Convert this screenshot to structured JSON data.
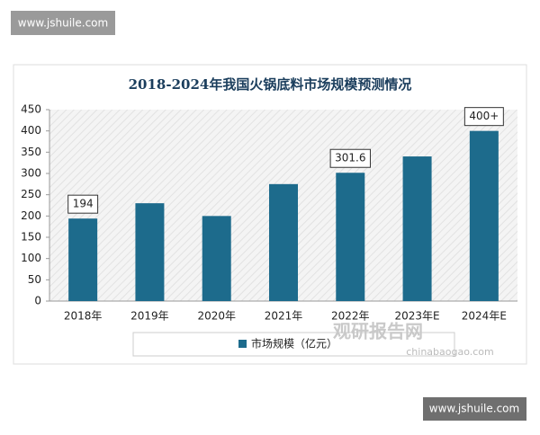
{
  "watermarks": {
    "top": "www.jshuile.com",
    "bottom": "www.jshuile.com",
    "brand": "观研报告网",
    "brand_url": "chinabaogao.com"
  },
  "chart_data": {
    "type": "bar",
    "title": "2018-2024年我国火锅底料市场规模预测情况",
    "categories": [
      "2018年",
      "2019年",
      "2020年",
      "2021年",
      "2022年",
      "2023年E",
      "2024年E"
    ],
    "series": [
      {
        "name": "市场规模（亿元）",
        "color": "#1d6b8c",
        "values": [
          194,
          230,
          200,
          275,
          301.6,
          340,
          400
        ],
        "value_labels": [
          "194",
          null,
          null,
          null,
          "301.6",
          null,
          "400+"
        ]
      }
    ],
    "ylim": [
      0,
      450
    ],
    "yticks": [
      0,
      50,
      100,
      150,
      200,
      250,
      300,
      350,
      400,
      450
    ],
    "grid": false,
    "legend": "bottom"
  }
}
